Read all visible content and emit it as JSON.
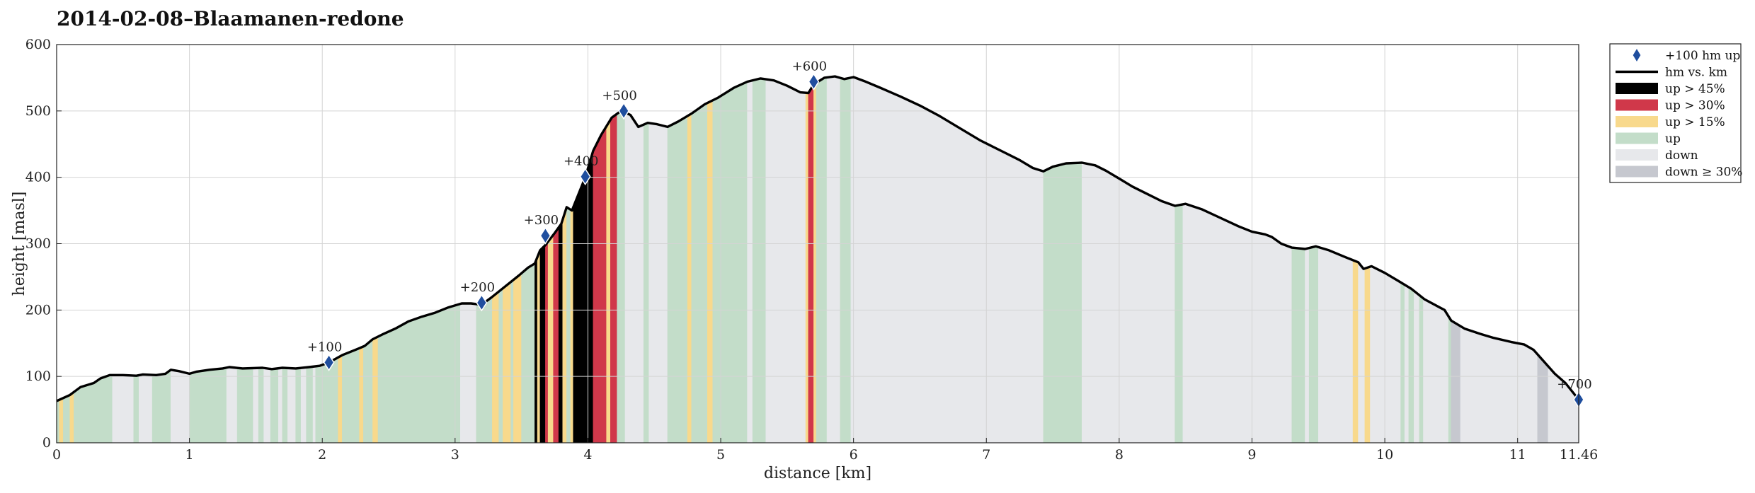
{
  "chart_data": {
    "type": "area",
    "title": "2014-02-08–Blaamanen-redone",
    "xlabel": "distance [km]",
    "ylabel": "height [masl]",
    "xlim": [
      0,
      11.46
    ],
    "ylim": [
      0,
      600
    ],
    "xticks": [
      0,
      1,
      2,
      3,
      4,
      5,
      6,
      7,
      8,
      9,
      10,
      11,
      11.46
    ],
    "xtick_labels": [
      "0",
      "1",
      "2",
      "3",
      "4",
      "5",
      "6",
      "7",
      "8",
      "9",
      "10",
      "11",
      "11.46"
    ],
    "yticks": [
      0,
      100,
      200,
      300,
      400,
      500,
      600
    ],
    "ytick_labels": [
      "0",
      "100",
      "200",
      "300",
      "400",
      "500",
      "600"
    ],
    "grid": true,
    "legend_position": "outside-right",
    "legend": [
      {
        "label": "+100 hm up",
        "kind": "marker",
        "color": "#1f4e9e"
      },
      {
        "label": "hm vs. km",
        "kind": "line",
        "color": "#000000"
      },
      {
        "label": "up > 45%",
        "kind": "patch",
        "color": "#000000"
      },
      {
        "label": "up > 30%",
        "kind": "patch",
        "color": "#d0384a"
      },
      {
        "label": "up > 15%",
        "kind": "patch",
        "color": "#f8d98c"
      },
      {
        "label": "up",
        "kind": "patch",
        "color": "#c3ddc9"
      },
      {
        "label": "down",
        "kind": "patch",
        "color": "#e7e8eb"
      },
      {
        "label": "down ≥ 30%",
        "kind": "patch",
        "color": "#c6c8cf"
      }
    ],
    "profile": [
      [
        0.0,
        63
      ],
      [
        0.1,
        72
      ],
      [
        0.18,
        84
      ],
      [
        0.28,
        90
      ],
      [
        0.33,
        97
      ],
      [
        0.4,
        102
      ],
      [
        0.5,
        102
      ],
      [
        0.6,
        101
      ],
      [
        0.65,
        103
      ],
      [
        0.75,
        102
      ],
      [
        0.82,
        104
      ],
      [
        0.86,
        110
      ],
      [
        0.92,
        108
      ],
      [
        1.0,
        104
      ],
      [
        1.05,
        107
      ],
      [
        1.15,
        110
      ],
      [
        1.25,
        112
      ],
      [
        1.3,
        114
      ],
      [
        1.4,
        112
      ],
      [
        1.55,
        113
      ],
      [
        1.62,
        111
      ],
      [
        1.7,
        113
      ],
      [
        1.8,
        112
      ],
      [
        1.9,
        114
      ],
      [
        1.98,
        116
      ],
      [
        2.05,
        121
      ],
      [
        2.15,
        132
      ],
      [
        2.25,
        140
      ],
      [
        2.32,
        146
      ],
      [
        2.38,
        156
      ],
      [
        2.45,
        163
      ],
      [
        2.55,
        172
      ],
      [
        2.65,
        183
      ],
      [
        2.75,
        190
      ],
      [
        2.85,
        196
      ],
      [
        2.95,
        204
      ],
      [
        3.05,
        210
      ],
      [
        3.12,
        210
      ],
      [
        3.2,
        208
      ],
      [
        3.28,
        220
      ],
      [
        3.38,
        236
      ],
      [
        3.48,
        252
      ],
      [
        3.55,
        264
      ],
      [
        3.6,
        270
      ],
      [
        3.64,
        290
      ],
      [
        3.68,
        298
      ],
      [
        3.75,
        316
      ],
      [
        3.8,
        330
      ],
      [
        3.84,
        355
      ],
      [
        3.88,
        350
      ],
      [
        3.94,
        380
      ],
      [
        3.98,
        400
      ],
      [
        4.04,
        440
      ],
      [
        4.1,
        464
      ],
      [
        4.18,
        490
      ],
      [
        4.25,
        500
      ],
      [
        4.32,
        494
      ],
      [
        4.38,
        476
      ],
      [
        4.45,
        482
      ],
      [
        4.52,
        480
      ],
      [
        4.6,
        476
      ],
      [
        4.68,
        484
      ],
      [
        4.78,
        496
      ],
      [
        4.88,
        510
      ],
      [
        4.98,
        520
      ],
      [
        5.1,
        535
      ],
      [
        5.2,
        544
      ],
      [
        5.3,
        549
      ],
      [
        5.4,
        546
      ],
      [
        5.5,
        538
      ],
      [
        5.6,
        528
      ],
      [
        5.66,
        527
      ],
      [
        5.7,
        540
      ],
      [
        5.78,
        550
      ],
      [
        5.86,
        552
      ],
      [
        5.93,
        548
      ],
      [
        6.0,
        551
      ],
      [
        6.08,
        545
      ],
      [
        6.2,
        535
      ],
      [
        6.35,
        522
      ],
      [
        6.5,
        508
      ],
      [
        6.65,
        492
      ],
      [
        6.8,
        474
      ],
      [
        6.95,
        456
      ],
      [
        7.05,
        446
      ],
      [
        7.15,
        436
      ],
      [
        7.25,
        426
      ],
      [
        7.35,
        414
      ],
      [
        7.43,
        409
      ],
      [
        7.5,
        416
      ],
      [
        7.6,
        421
      ],
      [
        7.72,
        422
      ],
      [
        7.82,
        418
      ],
      [
        7.9,
        410
      ],
      [
        8.0,
        398
      ],
      [
        8.1,
        386
      ],
      [
        8.2,
        376
      ],
      [
        8.32,
        364
      ],
      [
        8.42,
        357
      ],
      [
        8.5,
        360
      ],
      [
        8.62,
        352
      ],
      [
        8.75,
        340
      ],
      [
        8.9,
        326
      ],
      [
        9.0,
        318
      ],
      [
        9.1,
        314
      ],
      [
        9.15,
        310
      ],
      [
        9.22,
        300
      ],
      [
        9.3,
        294
      ],
      [
        9.4,
        292
      ],
      [
        9.48,
        296
      ],
      [
        9.58,
        290
      ],
      [
        9.7,
        280
      ],
      [
        9.8,
        272
      ],
      [
        9.84,
        262
      ],
      [
        9.9,
        266
      ],
      [
        10.0,
        256
      ],
      [
        10.1,
        244
      ],
      [
        10.2,
        232
      ],
      [
        10.3,
        216
      ],
      [
        10.45,
        200
      ],
      [
        10.5,
        184
      ],
      [
        10.6,
        172
      ],
      [
        10.72,
        164
      ],
      [
        10.82,
        158
      ],
      [
        10.95,
        152
      ],
      [
        11.05,
        148
      ],
      [
        11.12,
        140
      ],
      [
        11.2,
        122
      ],
      [
        11.28,
        104
      ],
      [
        11.36,
        90
      ],
      [
        11.46,
        65
      ]
    ],
    "bands": [
      {
        "from": 0.0,
        "to": 0.02,
        "cat": "up"
      },
      {
        "from": 0.02,
        "to": 0.05,
        "cat": "up15"
      },
      {
        "from": 0.05,
        "to": 0.1,
        "cat": "up"
      },
      {
        "from": 0.1,
        "to": 0.13,
        "cat": "up15"
      },
      {
        "from": 0.13,
        "to": 0.42,
        "cat": "up"
      },
      {
        "from": 0.42,
        "to": 0.58,
        "cat": "down"
      },
      {
        "from": 0.58,
        "to": 0.62,
        "cat": "up"
      },
      {
        "from": 0.62,
        "to": 0.72,
        "cat": "down"
      },
      {
        "from": 0.72,
        "to": 0.86,
        "cat": "up"
      },
      {
        "from": 0.86,
        "to": 1.0,
        "cat": "down"
      },
      {
        "from": 1.0,
        "to": 1.28,
        "cat": "up"
      },
      {
        "from": 1.28,
        "to": 1.36,
        "cat": "down"
      },
      {
        "from": 1.36,
        "to": 1.48,
        "cat": "up"
      },
      {
        "from": 1.48,
        "to": 1.52,
        "cat": "down"
      },
      {
        "from": 1.52,
        "to": 1.56,
        "cat": "up"
      },
      {
        "from": 1.56,
        "to": 1.61,
        "cat": "down"
      },
      {
        "from": 1.61,
        "to": 1.67,
        "cat": "up"
      },
      {
        "from": 1.67,
        "to": 1.7,
        "cat": "down"
      },
      {
        "from": 1.7,
        "to": 1.74,
        "cat": "up"
      },
      {
        "from": 1.74,
        "to": 1.8,
        "cat": "down"
      },
      {
        "from": 1.8,
        "to": 1.84,
        "cat": "up"
      },
      {
        "from": 1.84,
        "to": 1.88,
        "cat": "down"
      },
      {
        "from": 1.88,
        "to": 1.93,
        "cat": "up"
      },
      {
        "from": 1.93,
        "to": 1.95,
        "cat": "down"
      },
      {
        "from": 1.95,
        "to": 2.12,
        "cat": "up"
      },
      {
        "from": 2.12,
        "to": 2.15,
        "cat": "up15"
      },
      {
        "from": 2.15,
        "to": 2.28,
        "cat": "up"
      },
      {
        "from": 2.28,
        "to": 2.31,
        "cat": "up15"
      },
      {
        "from": 2.31,
        "to": 2.38,
        "cat": "up"
      },
      {
        "from": 2.38,
        "to": 2.42,
        "cat": "up15"
      },
      {
        "from": 2.42,
        "to": 3.04,
        "cat": "up"
      },
      {
        "from": 3.04,
        "to": 3.16,
        "cat": "down"
      },
      {
        "from": 3.16,
        "to": 3.28,
        "cat": "up"
      },
      {
        "from": 3.28,
        "to": 3.33,
        "cat": "up15"
      },
      {
        "from": 3.33,
        "to": 3.36,
        "cat": "up"
      },
      {
        "from": 3.36,
        "to": 3.42,
        "cat": "up15"
      },
      {
        "from": 3.42,
        "to": 3.44,
        "cat": "up"
      },
      {
        "from": 3.44,
        "to": 3.5,
        "cat": "up15"
      },
      {
        "from": 3.5,
        "to": 3.6,
        "cat": "up"
      },
      {
        "from": 3.6,
        "to": 3.62,
        "cat": "up45"
      },
      {
        "from": 3.62,
        "to": 3.64,
        "cat": "up15"
      },
      {
        "from": 3.64,
        "to": 3.68,
        "cat": "up45"
      },
      {
        "from": 3.68,
        "to": 3.7,
        "cat": "up30"
      },
      {
        "from": 3.7,
        "to": 3.74,
        "cat": "up15"
      },
      {
        "from": 3.74,
        "to": 3.78,
        "cat": "up30"
      },
      {
        "from": 3.78,
        "to": 3.81,
        "cat": "up45"
      },
      {
        "from": 3.81,
        "to": 3.84,
        "cat": "up15"
      },
      {
        "from": 3.84,
        "to": 3.87,
        "cat": "up"
      },
      {
        "from": 3.87,
        "to": 3.89,
        "cat": "up15"
      },
      {
        "from": 3.89,
        "to": 4.04,
        "cat": "up45"
      },
      {
        "from": 4.04,
        "to": 4.14,
        "cat": "up30"
      },
      {
        "from": 4.14,
        "to": 4.17,
        "cat": "up15"
      },
      {
        "from": 4.17,
        "to": 4.22,
        "cat": "up30"
      },
      {
        "from": 4.22,
        "to": 4.28,
        "cat": "up"
      },
      {
        "from": 4.28,
        "to": 4.42,
        "cat": "down"
      },
      {
        "from": 4.42,
        "to": 4.46,
        "cat": "up"
      },
      {
        "from": 4.46,
        "to": 4.6,
        "cat": "down"
      },
      {
        "from": 4.6,
        "to": 4.75,
        "cat": "up"
      },
      {
        "from": 4.75,
        "to": 4.78,
        "cat": "up15"
      },
      {
        "from": 4.78,
        "to": 4.9,
        "cat": "up"
      },
      {
        "from": 4.9,
        "to": 4.94,
        "cat": "up15"
      },
      {
        "from": 4.94,
        "to": 5.2,
        "cat": "up"
      },
      {
        "from": 5.2,
        "to": 5.24,
        "cat": "down"
      },
      {
        "from": 5.24,
        "to": 5.34,
        "cat": "up"
      },
      {
        "from": 5.34,
        "to": 5.64,
        "cat": "down"
      },
      {
        "from": 5.64,
        "to": 5.66,
        "cat": "up15"
      },
      {
        "from": 5.66,
        "to": 5.7,
        "cat": "up30"
      },
      {
        "from": 5.7,
        "to": 5.72,
        "cat": "up15"
      },
      {
        "from": 5.72,
        "to": 5.8,
        "cat": "up"
      },
      {
        "from": 5.8,
        "to": 5.9,
        "cat": "down"
      },
      {
        "from": 5.9,
        "to": 5.98,
        "cat": "up"
      },
      {
        "from": 5.98,
        "to": 7.43,
        "cat": "down"
      },
      {
        "from": 7.43,
        "to": 7.72,
        "cat": "up"
      },
      {
        "from": 7.72,
        "to": 8.42,
        "cat": "down"
      },
      {
        "from": 8.42,
        "to": 8.48,
        "cat": "up"
      },
      {
        "from": 8.48,
        "to": 9.3,
        "cat": "down"
      },
      {
        "from": 9.3,
        "to": 9.4,
        "cat": "up"
      },
      {
        "from": 9.4,
        "to": 9.43,
        "cat": "down"
      },
      {
        "from": 9.43,
        "to": 9.5,
        "cat": "up"
      },
      {
        "from": 9.5,
        "to": 9.76,
        "cat": "down"
      },
      {
        "from": 9.76,
        "to": 9.8,
        "cat": "up15"
      },
      {
        "from": 9.8,
        "to": 9.85,
        "cat": "down"
      },
      {
        "from": 9.85,
        "to": 9.89,
        "cat": "up15"
      },
      {
        "from": 9.89,
        "to": 10.12,
        "cat": "down"
      },
      {
        "from": 10.12,
        "to": 10.15,
        "cat": "up"
      },
      {
        "from": 10.15,
        "to": 10.18,
        "cat": "down"
      },
      {
        "from": 10.18,
        "to": 10.22,
        "cat": "up"
      },
      {
        "from": 10.22,
        "to": 10.26,
        "cat": "down"
      },
      {
        "from": 10.26,
        "to": 10.29,
        "cat": "up"
      },
      {
        "from": 10.29,
        "to": 10.48,
        "cat": "down"
      },
      {
        "from": 10.48,
        "to": 10.5,
        "cat": "up"
      },
      {
        "from": 10.5,
        "to": 10.57,
        "cat": "down30"
      },
      {
        "from": 10.57,
        "to": 11.15,
        "cat": "down"
      },
      {
        "from": 11.15,
        "to": 11.23,
        "cat": "down30"
      },
      {
        "from": 11.23,
        "to": 11.46,
        "cat": "down"
      }
    ],
    "colors": {
      "up45": "#000000",
      "up30": "#d0384a",
      "up15": "#f8d98c",
      "up": "#c3ddc9",
      "down": "#e7e8eb",
      "down30": "#c6c8cf",
      "line": "#000000",
      "marker": "#1f4e9e",
      "grid": "#d4d4d4"
    },
    "markers": [
      {
        "x": 2.05,
        "y": 121,
        "label": "+100"
      },
      {
        "x": 3.2,
        "y": 211,
        "label": "+200"
      },
      {
        "x": 3.68,
        "y": 312,
        "label": "+300"
      },
      {
        "x": 3.98,
        "y": 401,
        "label": "+400"
      },
      {
        "x": 4.27,
        "y": 500,
        "label": "+500"
      },
      {
        "x": 5.7,
        "y": 544,
        "label": "+600"
      },
      {
        "x": 11.46,
        "y": 65,
        "label": "+700"
      }
    ]
  }
}
